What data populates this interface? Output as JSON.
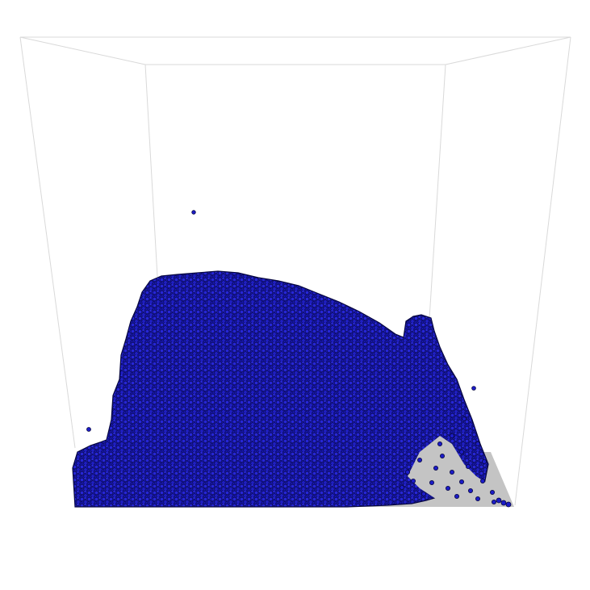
{
  "scene": {
    "type": "3d-particle-simulation-render",
    "background_color": "#ffffff",
    "box_edge_color": "#d9d9d9",
    "floor_color": "#c0c0c0",
    "particle_color": "#1c1cc8",
    "particle_shade_color": "#0b0b6a",
    "particle_outline_color": "#05052a"
  }
}
